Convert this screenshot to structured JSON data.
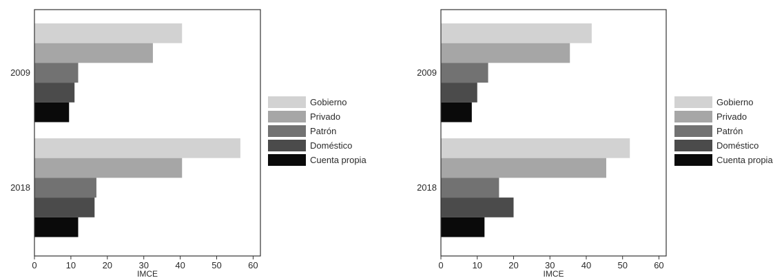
{
  "chart_data": [
    {
      "type": "bar",
      "orientation": "horizontal",
      "title": "",
      "xlabel": "IMCE",
      "ylabel": "",
      "xlim": [
        0,
        62
      ],
      "xticks": [
        "0",
        "10",
        "20",
        "30",
        "40",
        "50",
        "60"
      ],
      "categories": [
        "2009",
        "2018"
      ],
      "series": [
        {
          "name": "Gobierno",
          "values": [
            40.5,
            56.5
          ],
          "color": "#d2d2d2"
        },
        {
          "name": "Privado",
          "values": [
            32.5,
            40.5
          ],
          "color": "#a6a6a6"
        },
        {
          "name": "Patrón",
          "values": [
            12.0,
            17.0
          ],
          "color": "#727272"
        },
        {
          "name": "Doméstico",
          "values": [
            11.0,
            16.5
          ],
          "color": "#4b4b4b"
        },
        {
          "name": "Cuenta propia",
          "values": [
            9.5,
            12.0
          ],
          "color": "#0a0a0a"
        }
      ],
      "legend": "right",
      "grid": false
    },
    {
      "type": "bar",
      "orientation": "horizontal",
      "title": "",
      "xlabel": "IMCE",
      "ylabel": "",
      "xlim": [
        0,
        62
      ],
      "xticks": [
        "0",
        "10",
        "20",
        "30",
        "40",
        "50",
        "60"
      ],
      "categories": [
        "2009",
        "2018"
      ],
      "series": [
        {
          "name": "Gobierno",
          "values": [
            41.5,
            52.0
          ],
          "color": "#d2d2d2"
        },
        {
          "name": "Privado",
          "values": [
            35.5,
            45.5
          ],
          "color": "#a6a6a6"
        },
        {
          "name": "Patrón",
          "values": [
            13.0,
            16.0
          ],
          "color": "#727272"
        },
        {
          "name": "Doméstico",
          "values": [
            10.0,
            20.0
          ],
          "color": "#4b4b4b"
        },
        {
          "name": "Cuenta propia",
          "values": [
            8.5,
            12.0
          ],
          "color": "#0a0a0a"
        }
      ],
      "legend": "right",
      "grid": false
    }
  ]
}
